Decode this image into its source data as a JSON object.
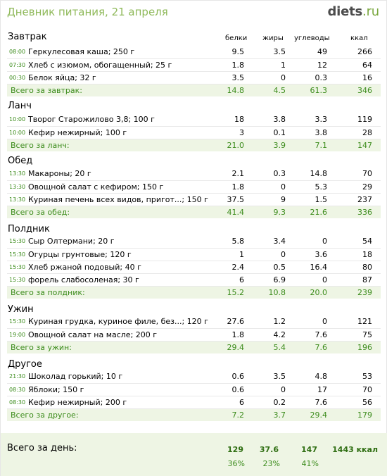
{
  "title": "Дневник питания, 21 апреля",
  "logo": {
    "main": "diets",
    "dot": ".",
    "tld": "ru"
  },
  "columns": {
    "protein": "белки",
    "fat": "жиры",
    "carbs": "углеводы",
    "kcal": "ккал"
  },
  "meals": [
    {
      "title": "Завтрак",
      "items": [
        {
          "time": "08:00",
          "name": "Геркулесовая каша; 250 г",
          "p": "9.5",
          "f": "3.5",
          "c": "49",
          "k": "266"
        },
        {
          "time": "07:30",
          "name": "Хлеб с изюмом, обогащенный; 25 г",
          "p": "1.8",
          "f": "1",
          "c": "12",
          "k": "64"
        },
        {
          "time": "00:30",
          "name": "Белок яйца; 32 г",
          "p": "3.5",
          "f": "0",
          "c": "0.3",
          "k": "16"
        }
      ],
      "total": {
        "label": "Всего за завтрак:",
        "p": "14.8",
        "f": "4.5",
        "c": "61.3",
        "k": "346"
      }
    },
    {
      "title": "Ланч",
      "items": [
        {
          "time": "10:00",
          "name": "Творог Старожилово 3,8; 100 г",
          "p": "18",
          "f": "3.8",
          "c": "3.3",
          "k": "119"
        },
        {
          "time": "10:00",
          "name": "Кефир нежирный; 100 г",
          "p": "3",
          "f": "0.1",
          "c": "3.8",
          "k": "28"
        }
      ],
      "total": {
        "label": "Всего за ланч:",
        "p": "21.0",
        "f": "3.9",
        "c": "7.1",
        "k": "147"
      }
    },
    {
      "title": "Обед",
      "items": [
        {
          "time": "13:30",
          "name": "Макароны; 20 г",
          "p": "2.1",
          "f": "0.3",
          "c": "14.8",
          "k": "70"
        },
        {
          "time": "13:30",
          "name": "Овощной салат с кефиром; 150 г",
          "p": "1.8",
          "f": "0",
          "c": "5.3",
          "k": "29"
        },
        {
          "time": "13:30",
          "name": "Куриная печень всех видов, пригот...; 150 г",
          "p": "37.5",
          "f": "9",
          "c": "1.5",
          "k": "237"
        }
      ],
      "total": {
        "label": "Всего за обед:",
        "p": "41.4",
        "f": "9.3",
        "c": "21.6",
        "k": "336"
      }
    },
    {
      "title": "Полдник",
      "items": [
        {
          "time": "15:30",
          "name": "Сыр Олтермани; 20 г",
          "p": "5.8",
          "f": "3.4",
          "c": "0",
          "k": "54"
        },
        {
          "time": "15:30",
          "name": "Огурцы грунтовые; 120 г",
          "p": "1",
          "f": "0",
          "c": "3.6",
          "k": "18"
        },
        {
          "time": "15:30",
          "name": "Хлеб ржаной подовый; 40 г",
          "p": "2.4",
          "f": "0.5",
          "c": "16.4",
          "k": "80"
        },
        {
          "time": "15:30",
          "name": "форель слабосоленая; 30 г",
          "p": "6",
          "f": "6.9",
          "c": "0",
          "k": "87"
        }
      ],
      "total": {
        "label": "Всего за полдник:",
        "p": "15.2",
        "f": "10.8",
        "c": "20.0",
        "k": "239"
      }
    },
    {
      "title": "Ужин",
      "items": [
        {
          "time": "15:30",
          "name": "Куриная грудка, куриное филе, без...; 120 г",
          "p": "27.6",
          "f": "1.2",
          "c": "0",
          "k": "121"
        },
        {
          "time": "19:00",
          "name": "Овощной салат на масле; 200 г",
          "p": "1.8",
          "f": "4.2",
          "c": "7.6",
          "k": "75"
        }
      ],
      "total": {
        "label": "Всего за ужин:",
        "p": "29.4",
        "f": "5.4",
        "c": "7.6",
        "k": "196"
      }
    },
    {
      "title": "Другое",
      "items": [
        {
          "time": "21:30",
          "name": "Шоколад горький; 10 г",
          "p": "0.6",
          "f": "3.5",
          "c": "4.8",
          "k": "53"
        },
        {
          "time": "08:30",
          "name": "Яблоки; 150 г",
          "p": "0.6",
          "f": "0",
          "c": "17",
          "k": "70"
        },
        {
          "time": "08:30",
          "name": "Кефир нежирный; 200 г",
          "p": "6",
          "f": "0.2",
          "c": "7.6",
          "k": "56"
        }
      ],
      "total": {
        "label": "Всего за другое:",
        "p": "7.2",
        "f": "3.7",
        "c": "29.4",
        "k": "179"
      }
    }
  ],
  "day": {
    "label": "Всего за день:",
    "p": "129",
    "f": "37.6",
    "c": "147",
    "k": "1443 ккал",
    "pp": "36%",
    "fp": "23%",
    "cp": "41%"
  }
}
